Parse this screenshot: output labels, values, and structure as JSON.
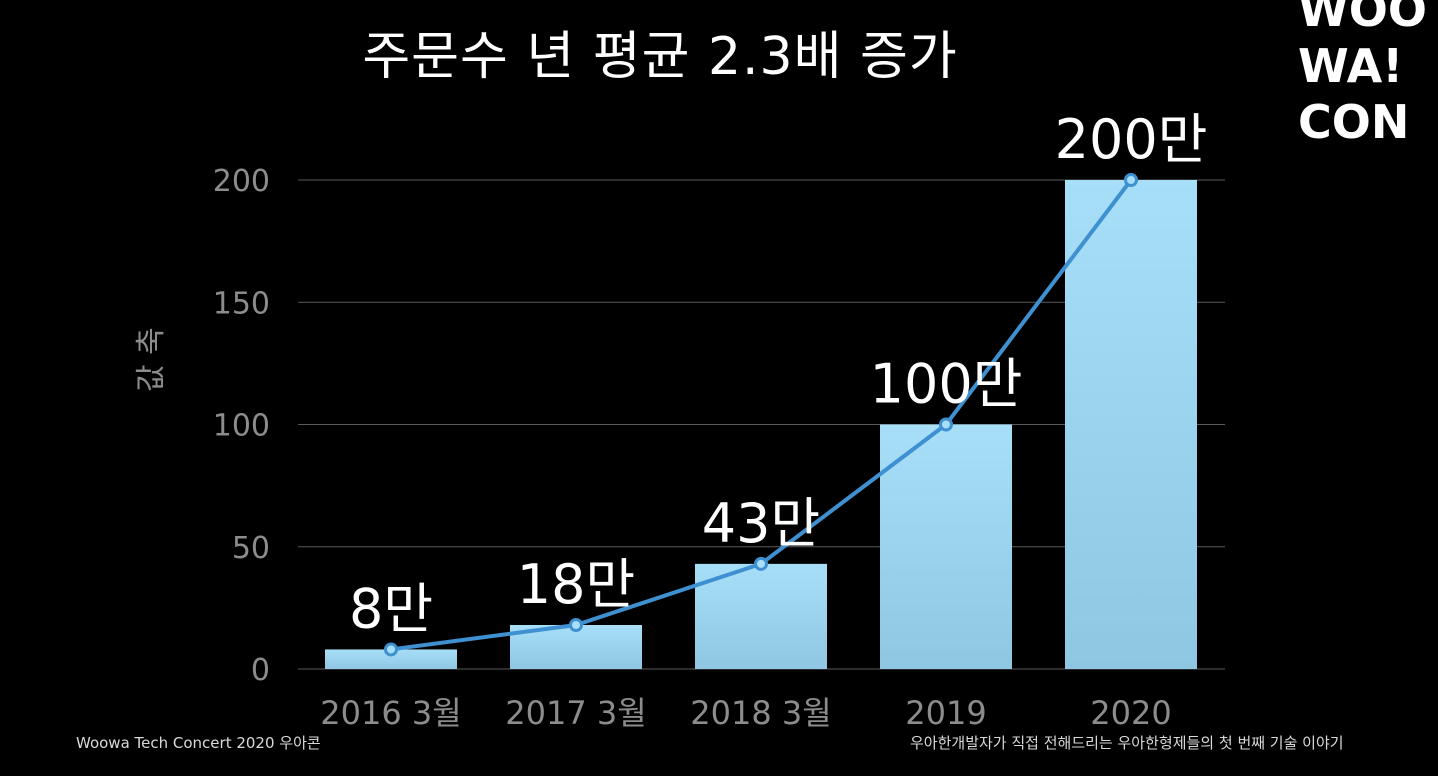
{
  "slide": {
    "title": "주문수 년 평균 2.3배 증가",
    "logo_lines": [
      "WOO",
      "WA!",
      "CON"
    ],
    "footer_left": "Woowa Tech Concert  2020 우아콘",
    "footer_right": "우아한개발자가 직접 전해드리는 우아한형제들의 첫 번째 기술 이야기"
  },
  "chart_data": {
    "type": "bar",
    "title": "주문수 년 평균 2.3배 증가",
    "xlabel": "",
    "ylabel": "값 축",
    "categories": [
      "2016 3월",
      "2017 3월",
      "2018 3월",
      "2019",
      "2020"
    ],
    "series": [
      {
        "values": [
          8,
          18,
          43,
          100,
          200
        ],
        "data_labels": [
          "8만",
          "18만",
          "43만",
          "100만",
          "200만"
        ]
      }
    ],
    "overlay_line": true,
    "ylim": [
      0,
      200
    ],
    "yticks": [
      0,
      50,
      100,
      150,
      200
    ],
    "grid": true,
    "legend": "none",
    "colors": {
      "bar_top": "#a7dff9",
      "bar_bottom": "#8fc7e3",
      "line": "#3f90d0",
      "grid": "#5a5a5a",
      "tick_text": "#8c8c8c",
      "label_text": "#ffffff"
    }
  }
}
